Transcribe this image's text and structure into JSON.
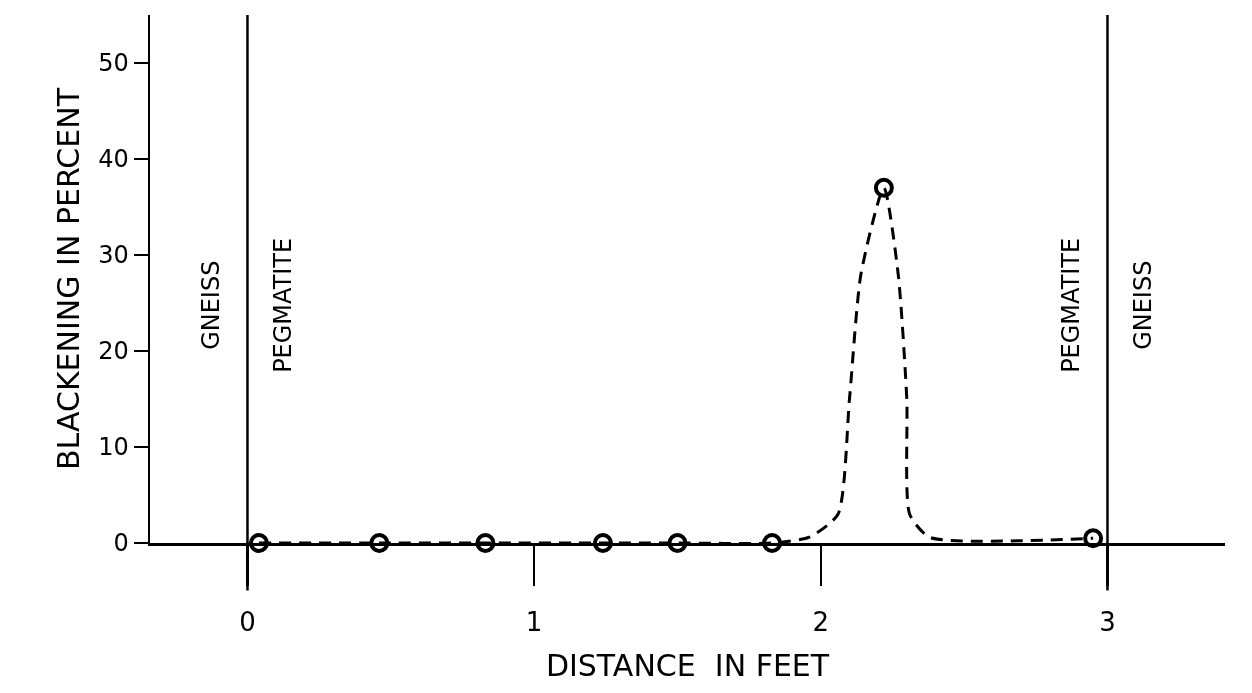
{
  "chart_data": {
    "type": "line",
    "xlabel": "DISTANCE  IN FEET",
    "ylabel": "BLACKENING IN PERCENT",
    "xlim": [
      -0.34,
      3.41
    ],
    "xticks": [
      0,
      1,
      2,
      3
    ],
    "ylim": [
      0,
      55
    ],
    "yticks": [
      0,
      10,
      20,
      30,
      40,
      50
    ],
    "grid": false,
    "series": [
      {
        "color": "#000000",
        "line_style": "dashed",
        "marker": "none",
        "x": [
          0.04,
          0.46,
          0.83,
          1.24,
          1.5,
          1.83,
          1.96,
          2.06,
          2.1,
          2.14,
          2.22,
          2.27,
          2.3,
          2.31,
          2.38,
          2.95
        ],
        "values": [
          0,
          0,
          0,
          0,
          0,
          0,
          0.6,
          3,
          15,
          28,
          37,
          28,
          15,
          3,
          0.6,
          0.5
        ]
      },
      {
        "type": "scatter",
        "color": "#000000",
        "marker": "circle",
        "x": [
          0.04,
          0.46,
          0.83,
          1.24,
          1.5,
          1.83,
          2.22,
          2.95
        ],
        "values": [
          0,
          0,
          0,
          0,
          0,
          0,
          37,
          0.5
        ]
      }
    ],
    "ref_lines": [
      {
        "axis": "x",
        "value": 0,
        "color": "#000000"
      },
      {
        "axis": "x",
        "value": 3,
        "color": "#000000"
      }
    ],
    "annotations": [
      "GNEISS",
      "PEGMATITE",
      "PEGMATITE",
      "GNEISS"
    ]
  }
}
